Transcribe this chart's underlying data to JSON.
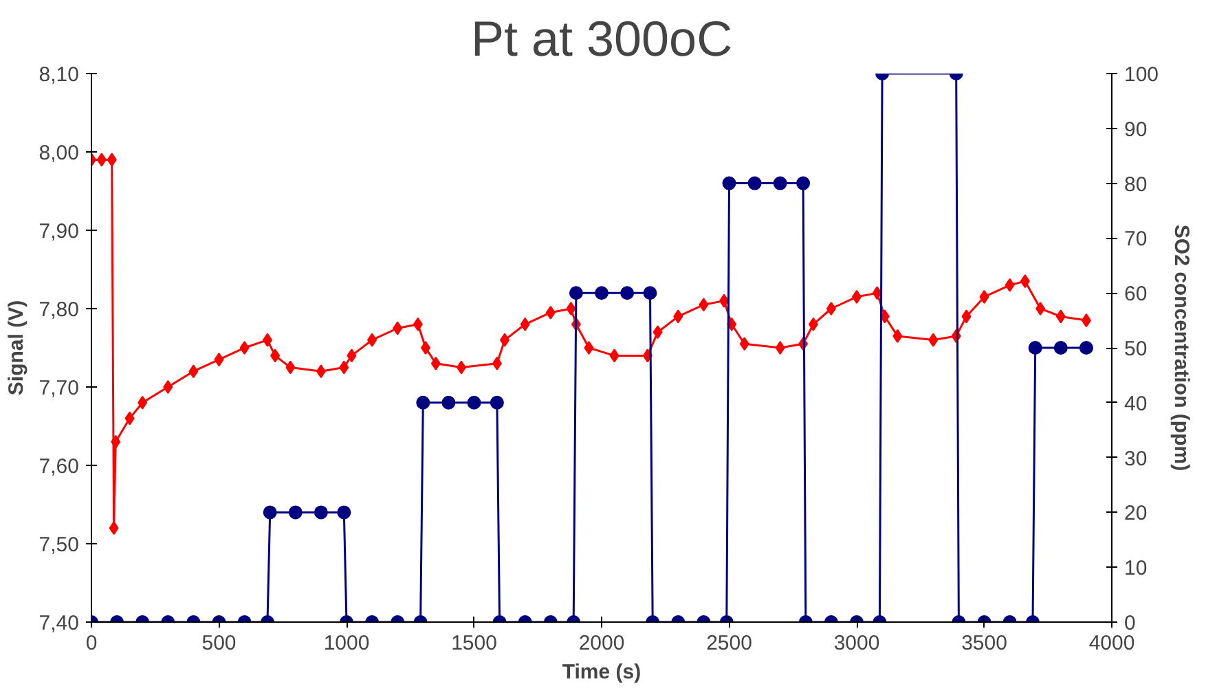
{
  "chart_data": {
    "type": "line",
    "title": "Pt at 300oC",
    "xlabel": "Time (s)",
    "ylabel": "Signal (V)",
    "y2label": "SO2 concentration (ppm)",
    "xlim": [
      0,
      4000
    ],
    "xticks": [
      0,
      500,
      1000,
      1500,
      2000,
      2500,
      3000,
      3500,
      4000
    ],
    "ylim": [
      7.4,
      8.1
    ],
    "yticks": [
      {
        "value": 7.4,
        "label": "7,40"
      },
      {
        "value": 7.5,
        "label": "7,50"
      },
      {
        "value": 7.6,
        "label": "7,60"
      },
      {
        "value": 7.7,
        "label": "7,70"
      },
      {
        "value": 7.8,
        "label": "7,80"
      },
      {
        "value": 7.9,
        "label": "7,90"
      },
      {
        "value": 8.0,
        "label": "8,00"
      },
      {
        "value": 8.1,
        "label": "8,10"
      }
    ],
    "y2lim": [
      0,
      100
    ],
    "y2ticks": [
      0,
      10,
      20,
      30,
      40,
      50,
      60,
      70,
      80,
      90,
      100
    ],
    "grid": false,
    "series": [
      {
        "color": "#ff0000",
        "marker": "diamond",
        "x": [
          0,
          40,
          80,
          88,
          95,
          150,
          200,
          300,
          400,
          500,
          600,
          690,
          720,
          780,
          900,
          990,
          1020,
          1100,
          1200,
          1280,
          1310,
          1350,
          1450,
          1590,
          1620,
          1700,
          1800,
          1880,
          1900,
          1950,
          2050,
          2180,
          2220,
          2300,
          2400,
          2480,
          2510,
          2560,
          2700,
          2790,
          2830,
          2900,
          3000,
          3080,
          3110,
          3160,
          3300,
          3390,
          3430,
          3500,
          3600,
          3660,
          3720,
          3800,
          3900
        ],
        "values": [
          7.99,
          7.99,
          7.99,
          7.52,
          7.63,
          7.66,
          7.68,
          7.7,
          7.72,
          7.735,
          7.75,
          7.76,
          7.74,
          7.725,
          7.72,
          7.725,
          7.74,
          7.76,
          7.775,
          7.78,
          7.75,
          7.73,
          7.725,
          7.73,
          7.76,
          7.78,
          7.795,
          7.8,
          7.78,
          7.75,
          7.74,
          7.74,
          7.77,
          7.79,
          7.805,
          7.81,
          7.78,
          7.755,
          7.75,
          7.755,
          7.78,
          7.8,
          7.815,
          7.82,
          7.79,
          7.765,
          7.76,
          7.765,
          7.79,
          7.815,
          7.83,
          7.835,
          7.8,
          7.79,
          7.785
        ]
      },
      {
        "color": "#000080",
        "marker": "circle",
        "axis": "y2",
        "x": [
          0,
          100,
          200,
          300,
          400,
          500,
          600,
          690,
          700,
          800,
          900,
          990,
          1000,
          1100,
          1200,
          1290,
          1300,
          1400,
          1500,
          1590,
          1600,
          1700,
          1800,
          1890,
          1900,
          2000,
          2100,
          2190,
          2200,
          2300,
          2400,
          2490,
          2500,
          2600,
          2700,
          2790,
          2800,
          2900,
          3000,
          3090,
          3100,
          3390,
          3400,
          3500,
          3600,
          3690,
          3700,
          3800,
          3900
        ],
        "values": [
          0,
          0,
          0,
          0,
          0,
          0,
          0,
          0,
          20,
          20,
          20,
          20,
          0,
          0,
          0,
          0,
          40,
          40,
          40,
          40,
          0,
          0,
          0,
          0,
          60,
          60,
          60,
          60,
          0,
          0,
          0,
          0,
          80,
          80,
          80,
          80,
          0,
          0,
          0,
          0,
          100,
          100,
          0,
          0,
          0,
          0,
          50,
          50,
          50
        ]
      }
    ]
  }
}
